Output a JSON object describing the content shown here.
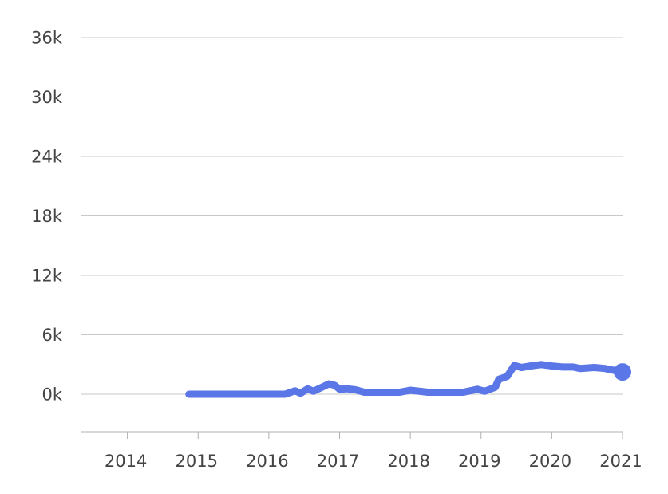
{
  "chart_data": {
    "type": "line",
    "title": "",
    "xlabel": "",
    "ylabel": "",
    "ylim": [
      -3000,
      36000
    ],
    "xlim": [
      2013.35,
      2021.0
    ],
    "y_ticks": [
      {
        "value": 0,
        "label": "0k"
      },
      {
        "value": 6000,
        "label": "6k"
      },
      {
        "value": 12000,
        "label": "12k"
      },
      {
        "value": 18000,
        "label": "18k"
      },
      {
        "value": 24000,
        "label": "24k"
      },
      {
        "value": 30000,
        "label": "30k"
      },
      {
        "value": 36000,
        "label": "36k"
      }
    ],
    "x_ticks": [
      {
        "value": 2014,
        "label": "2014"
      },
      {
        "value": 2015,
        "label": "2015"
      },
      {
        "value": 2016,
        "label": "2016"
      },
      {
        "value": 2017,
        "label": "2017"
      },
      {
        "value": 2018,
        "label": "2018"
      },
      {
        "value": 2019,
        "label": "2019"
      },
      {
        "value": 2020,
        "label": "2020"
      },
      {
        "value": 2021,
        "label": "2021"
      }
    ],
    "grid": true,
    "series": [
      {
        "name": "series",
        "color": "#5b76e6",
        "x": [
          2014.87,
          2015.5,
          2016.0,
          2016.23,
          2016.37,
          2016.45,
          2016.55,
          2016.63,
          2016.75,
          2016.85,
          2016.93,
          2017.0,
          2017.1,
          2017.22,
          2017.35,
          2017.6,
          2017.85,
          2018.0,
          2018.25,
          2018.5,
          2018.75,
          2018.95,
          2019.05,
          2019.2,
          2019.25,
          2019.37,
          2019.47,
          2019.57,
          2019.7,
          2019.85,
          2020.0,
          2020.15,
          2020.3,
          2020.4,
          2020.6,
          2020.75,
          2020.85,
          2021.0
        ],
        "y": [
          0,
          0,
          0,
          0,
          350,
          100,
          550,
          300,
          700,
          1050,
          900,
          500,
          550,
          450,
          200,
          200,
          200,
          400,
          200,
          200,
          200,
          500,
          300,
          700,
          1500,
          1800,
          2900,
          2700,
          2850,
          3000,
          2850,
          2750,
          2750,
          2600,
          2700,
          2600,
          2450,
          2250
        ]
      }
    ]
  }
}
